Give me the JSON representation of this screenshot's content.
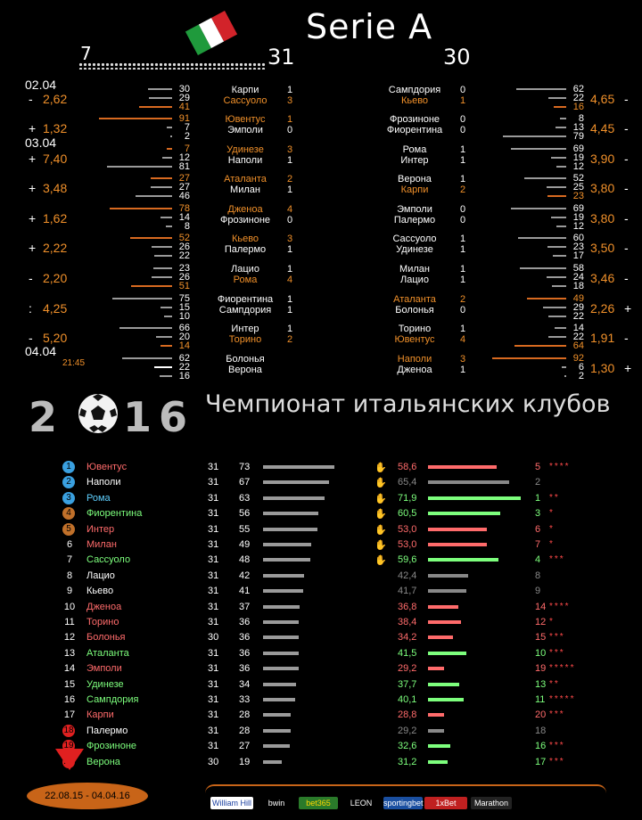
{
  "header": {
    "title": "Serie A",
    "played": "7",
    "round_a": "31",
    "round_b": "30"
  },
  "flag_colors": [
    "#1f9a3c",
    "#ffffff",
    "#d2232a"
  ],
  "dates": [
    "02.04",
    "03.04",
    "04.04"
  ],
  "time": "21:45",
  "left_odds": [
    {
      "sign": "-",
      "odd": "2,62"
    },
    {
      "sign": "+",
      "odd": "1,32"
    },
    {
      "sign": "+",
      "odd": "7,40"
    },
    {
      "sign": "+",
      "odd": "3,48"
    },
    {
      "sign": "+",
      "odd": "1,62"
    },
    {
      "sign": "+",
      "odd": "2,22"
    },
    {
      "sign": "-",
      "odd": "2,20"
    },
    {
      "sign": ":",
      "odd": "4,25"
    },
    {
      "sign": "-",
      "odd": "5,20"
    }
  ],
  "left_matches": [
    {
      "t1": "Карпи",
      "t2": "Сассуоло",
      "g1": "1",
      "g2": "3",
      "o1": false,
      "o2": true,
      "b": [
        "30",
        "29",
        "41"
      ]
    },
    {
      "t1": "Ювентус",
      "t2": "Эмполи",
      "g1": "1",
      "g2": "0",
      "o1": true,
      "o2": false,
      "b": [
        "91",
        "7",
        "2"
      ]
    },
    {
      "t1": "Удинезе",
      "t2": "Наполи",
      "g1": "3",
      "g2": "1",
      "o1": true,
      "o2": false,
      "b": [
        "7",
        "12",
        "81"
      ]
    },
    {
      "t1": "Аталанта",
      "t2": "Милан",
      "g1": "2",
      "g2": "1",
      "o1": true,
      "o2": false,
      "b": [
        "27",
        "27",
        "46"
      ]
    },
    {
      "t1": "Дженоа",
      "t2": "Фрозиноне",
      "g1": "4",
      "g2": "0",
      "o1": true,
      "o2": false,
      "b": [
        "78",
        "14",
        "8"
      ]
    },
    {
      "t1": "Кьево",
      "t2": "Палермо",
      "g1": "3",
      "g2": "1",
      "o1": true,
      "o2": false,
      "b": [
        "52",
        "26",
        "22"
      ]
    },
    {
      "t1": "Лацио",
      "t2": "Рома",
      "g1": "1",
      "g2": "4",
      "o1": false,
      "o2": true,
      "b": [
        "23",
        "26",
        "51"
      ]
    },
    {
      "t1": "Фиорентина",
      "t2": "Сампдория",
      "g1": "1",
      "g2": "1",
      "o1": false,
      "o2": false,
      "b": [
        "75",
        "15",
        "10"
      ]
    },
    {
      "t1": "Интер",
      "t2": "Торино",
      "g1": "1",
      "g2": "2",
      "o1": false,
      "o2": true,
      "b": [
        "66",
        "20",
        "14"
      ]
    },
    {
      "t1": "Болонья",
      "t2": "Верона",
      "g1": "",
      "g2": "",
      "o1": false,
      "o2": false,
      "b": [
        "62",
        "22",
        "16"
      ]
    }
  ],
  "right_matches": [
    {
      "t1": "Сампдория",
      "t2": "Кьево",
      "g1": "0",
      "g2": "1",
      "o1": false,
      "o2": true,
      "b": [
        "62",
        "22",
        "16"
      ],
      "odd": "4,65",
      "sign": "-"
    },
    {
      "t1": "Фрозиноне",
      "t2": "Фиорентина",
      "g1": "0",
      "g2": "0",
      "o1": false,
      "o2": false,
      "b": [
        "8",
        "13",
        "79"
      ],
      "odd": "4,45",
      "sign": "-"
    },
    {
      "t1": "Рома",
      "t2": "Интер",
      "g1": "1",
      "g2": "1",
      "o1": false,
      "o2": false,
      "b": [
        "69",
        "19",
        "12"
      ],
      "odd": "3,90",
      "sign": "-"
    },
    {
      "t1": "Верона",
      "t2": "Карпи",
      "g1": "1",
      "g2": "2",
      "o1": false,
      "o2": true,
      "b": [
        "52",
        "25",
        "23"
      ],
      "odd": "3,80",
      "sign": "-"
    },
    {
      "t1": "Эмполи",
      "t2": "Палермо",
      "g1": "0",
      "g2": "0",
      "o1": false,
      "o2": false,
      "b": [
        "69",
        "19",
        "12"
      ],
      "odd": "3,80",
      "sign": "-"
    },
    {
      "t1": "Сассуоло",
      "t2": "Удинезе",
      "g1": "1",
      "g2": "1",
      "o1": false,
      "o2": false,
      "b": [
        "60",
        "23",
        "17"
      ],
      "odd": "3,50",
      "sign": "-"
    },
    {
      "t1": "Милан",
      "t2": "Лацио",
      "g1": "1",
      "g2": "1",
      "o1": false,
      "o2": false,
      "b": [
        "58",
        "24",
        "18"
      ],
      "odd": "3,46",
      "sign": "-"
    },
    {
      "t1": "Аталанта",
      "t2": "Болонья",
      "g1": "2",
      "g2": "0",
      "o1": true,
      "o2": false,
      "b": [
        "49",
        "29",
        "22"
      ],
      "odd": "2,26",
      "sign": "+"
    },
    {
      "t1": "Торино",
      "t2": "Ювентус",
      "g1": "1",
      "g2": "4",
      "o1": false,
      "o2": true,
      "b": [
        "14",
        "22",
        "64"
      ],
      "odd": "1,91",
      "sign": "-"
    },
    {
      "t1": "Наполи",
      "t2": "Дженоа",
      "g1": "3",
      "g2": "1",
      "o1": true,
      "o2": false,
      "b": [
        "92",
        "6",
        "2"
      ],
      "odd": "1,30",
      "sign": "+"
    }
  ],
  "banner": {
    "year_digits": [
      "2",
      "1",
      "6"
    ],
    "subtitle": "Чемпионат итальянских  клубов"
  },
  "table": [
    {
      "pos": "1",
      "name": "Ювентус",
      "g": "31",
      "p": "73",
      "pct": "58,6",
      "rp": "5",
      "stars": "****",
      "nc": "red",
      "pc": "red",
      "thumb": true,
      "badge": "#3aa0e0"
    },
    {
      "pos": "2",
      "name": "Наполи",
      "g": "31",
      "p": "67",
      "pct": "65,4",
      "rp": "2",
      "stars": "",
      "nc": "wh",
      "pc": "gry",
      "thumb": true,
      "badge": "#3aa0e0"
    },
    {
      "pos": "3",
      "name": "Рома",
      "g": "31",
      "p": "63",
      "pct": "71,9",
      "rp": "1",
      "stars": "**",
      "nc": "grn",
      "pc": "grn",
      "thumb": true,
      "badge": "#3aa0e0"
    },
    {
      "pos": "4",
      "name": "Фиорентина",
      "g": "31",
      "p": "56",
      "pct": "60,5",
      "rp": "3",
      "stars": "*",
      "nc": "grn",
      "pc": "grn",
      "thumb": true,
      "badge": "#c0702a"
    },
    {
      "pos": "5",
      "name": "Интер",
      "g": "31",
      "p": "55",
      "pct": "53,0",
      "rp": "6",
      "stars": "*",
      "nc": "red",
      "pc": "red",
      "thumb": true,
      "badge": "#c0702a"
    },
    {
      "pos": "6",
      "name": "Милан",
      "g": "31",
      "p": "49",
      "pct": "53,0",
      "rp": "7",
      "stars": "*",
      "nc": "red",
      "pc": "red",
      "thumb": true,
      "badge": ""
    },
    {
      "pos": "7",
      "name": "Сассуоло",
      "g": "31",
      "p": "48",
      "pct": "59,6",
      "rp": "4",
      "stars": "***",
      "nc": "grn",
      "pc": "grn",
      "thumb": true,
      "badge": ""
    },
    {
      "pos": "8",
      "name": "Лацио",
      "g": "31",
      "p": "42",
      "pct": "42,4",
      "rp": "8",
      "stars": "",
      "nc": "wh",
      "pc": "gry",
      "thumb": false,
      "badge": ""
    },
    {
      "pos": "9",
      "name": "Кьево",
      "g": "31",
      "p": "41",
      "pct": "41,7",
      "rp": "9",
      "stars": "",
      "nc": "wh",
      "pc": "gry",
      "thumb": false,
      "badge": ""
    },
    {
      "pos": "10",
      "name": "Дженоа",
      "g": "31",
      "p": "37",
      "pct": "36,8",
      "rp": "14",
      "stars": "****",
      "nc": "red",
      "pc": "red",
      "thumb": false,
      "badge": ""
    },
    {
      "pos": "11",
      "name": "Торино",
      "g": "31",
      "p": "36",
      "pct": "38,4",
      "rp": "12",
      "stars": "*",
      "nc": "red",
      "pc": "red",
      "thumb": false,
      "badge": ""
    },
    {
      "pos": "12",
      "name": "Болонья",
      "g": "30",
      "p": "36",
      "pct": "34,2",
      "rp": "15",
      "stars": "***",
      "nc": "red",
      "pc": "red",
      "thumb": false,
      "badge": ""
    },
    {
      "pos": "13",
      "name": "Аталанта",
      "g": "31",
      "p": "36",
      "pct": "41,5",
      "rp": "10",
      "stars": "***",
      "nc": "grn",
      "pc": "grn",
      "thumb": false,
      "badge": ""
    },
    {
      "pos": "14",
      "name": "Эмполи",
      "g": "31",
      "p": "36",
      "pct": "29,2",
      "rp": "19",
      "stars": "*****",
      "nc": "red",
      "pc": "red",
      "thumb": false,
      "badge": ""
    },
    {
      "pos": "15",
      "name": "Удинезе",
      "g": "31",
      "p": "34",
      "pct": "37,7",
      "rp": "13",
      "stars": "**",
      "nc": "grn",
      "pc": "grn",
      "thumb": false,
      "badge": ""
    },
    {
      "pos": "16",
      "name": "Сампдория",
      "g": "31",
      "p": "33",
      "pct": "40,1",
      "rp": "11",
      "stars": "*****",
      "nc": "grn",
      "pc": "grn",
      "thumb": false,
      "badge": ""
    },
    {
      "pos": "17",
      "name": "Карпи",
      "g": "31",
      "p": "28",
      "pct": "28,8",
      "rp": "20",
      "stars": "***",
      "nc": "red",
      "pc": "red",
      "thumb": false,
      "badge": ""
    },
    {
      "pos": "18",
      "name": "Палермо",
      "g": "31",
      "p": "28",
      "pct": "29,2",
      "rp": "18",
      "stars": "",
      "nc": "wh",
      "pc": "gry",
      "thumb": false,
      "badge": "#e02020"
    },
    {
      "pos": "19",
      "name": "Фрозиноне",
      "g": "31",
      "p": "27",
      "pct": "32,6",
      "rp": "16",
      "stars": "***",
      "nc": "grn",
      "pc": "grn",
      "thumb": false,
      "badge": "#e02020"
    },
    {
      "pos": "20",
      "name": "Верона",
      "g": "30",
      "p": "19",
      "pct": "31,2",
      "rp": "17",
      "stars": "***",
      "nc": "grn",
      "pc": "grn",
      "thumb": false,
      "badge": "#e02020"
    }
  ],
  "period": "22.08.15 - 04.04.16",
  "bookmakers": [
    "William Hill",
    "bwin",
    "bet365",
    "LEON",
    "sportingbet",
    "1xBet",
    "Marathon"
  ]
}
